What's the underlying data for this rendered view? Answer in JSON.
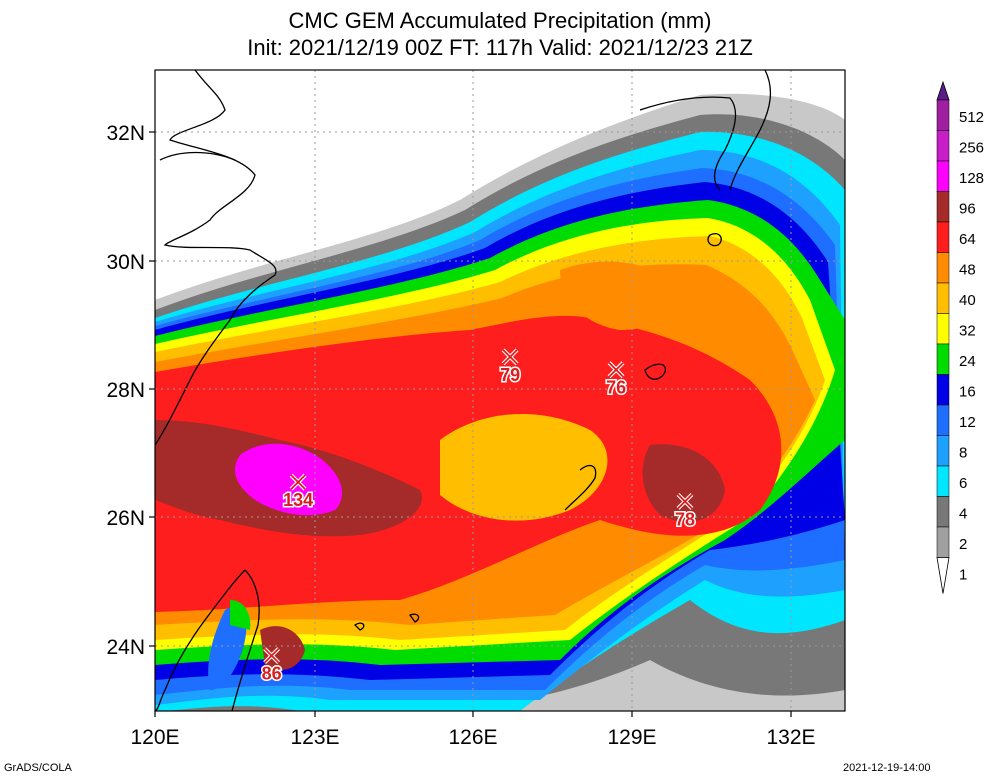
{
  "title": "CMC GEM Accumulated Precipitation (mm)",
  "subtitle": "Init: 2021/12/19 00Z  FT: 117h  Valid: 2021/12/23 21Z",
  "lat_labels": [
    "32N",
    "30N",
    "28N",
    "26N",
    "24N"
  ],
  "lon_labels": [
    "120E",
    "123E",
    "126E",
    "129E",
    "132E"
  ],
  "colorbar": {
    "labels": [
      "512",
      "256",
      "128",
      "96",
      "64",
      "48",
      "40",
      "32",
      "24",
      "16",
      "12",
      "8",
      "6",
      "4",
      "2",
      "1"
    ],
    "colors": [
      "#5a1e8c",
      "#a01ea0",
      "#c81ec8",
      "#ff00ff",
      "#a52a2a",
      "#ff1e1e",
      "#ff8c00",
      "#ffbe00",
      "#ffff00",
      "#00dc00",
      "#0000e6",
      "#1e6eff",
      "#1ea0ff",
      "#00e6ff",
      "#787878",
      "#a0a0a0",
      "#c8c8c8"
    ]
  },
  "maxima": [
    {
      "label": "134",
      "lon": 122.7,
      "lat": 26.55
    },
    {
      "label": "79",
      "lon": 126.7,
      "lat": 28.5
    },
    {
      "label": "76",
      "lon": 128.7,
      "lat": 28.3
    },
    {
      "label": "78",
      "lon": 130.0,
      "lat": 26.25
    },
    {
      "label": "86",
      "lon": 122.2,
      "lat": 23.85
    }
  ],
  "footer_left": "GrADS/COLA",
  "footer_right": "2021-12-19-14:00"
}
